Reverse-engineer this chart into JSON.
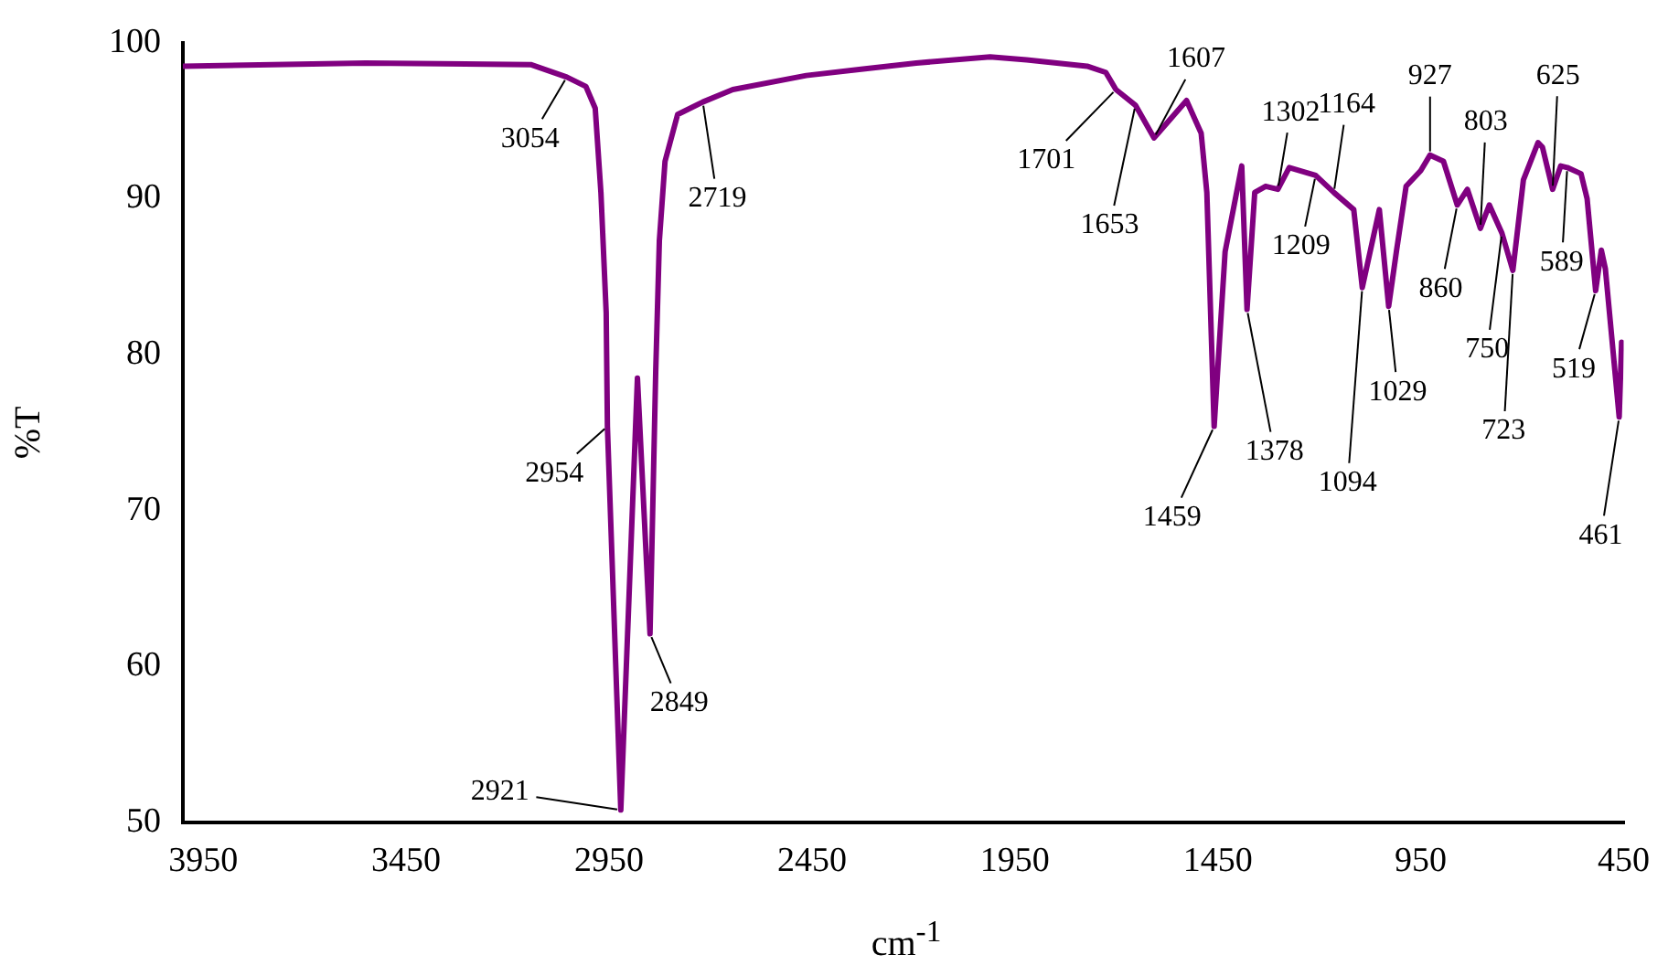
{
  "chart_data": {
    "type": "line",
    "xlabel": "cm$^{-1}$",
    "ylabel": "%T",
    "xlim": [
      4000,
      450
    ],
    "ylim": [
      50,
      100
    ],
    "xticks": [
      3950,
      3450,
      2950,
      2450,
      1950,
      1450,
      950,
      450
    ],
    "yticks": [
      50,
      60,
      70,
      80,
      90,
      100
    ],
    "grid": false,
    "series": [
      {
        "color": "#800080",
        "x": [
          4000,
          3550,
          3143,
          3054,
          3007,
          2984,
          2970,
          2957,
          2954,
          2921,
          2880,
          2849,
          2835,
          2826,
          2812,
          2781,
          2719,
          2645,
          2464,
          2329,
          2193,
          2011,
          1921,
          1772,
          1726,
          1701,
          1653,
          1607,
          1527,
          1491,
          1477,
          1459,
          1432,
          1391,
          1378,
          1359,
          1332,
          1302,
          1274,
          1209,
          1164,
          1115,
          1094,
          1052,
          1029,
          1010,
          986,
          950,
          927,
          894,
          860,
          835,
          803,
          781,
          750,
          723,
          697,
          661,
          650,
          625,
          605,
          589,
          555,
          540,
          519,
          505,
          495,
          461,
          455
        ],
        "values": [
          98.5,
          98.7,
          98.6,
          97.8,
          97.2,
          95.8,
          90.4,
          82.7,
          75.4,
          50.8,
          78.5,
          62.1,
          78.9,
          87.3,
          92.4,
          95.4,
          96.2,
          97.0,
          97.9,
          98.3,
          98.7,
          99.1,
          98.9,
          98.5,
          98.1,
          97.0,
          96.0,
          93.9,
          96.3,
          94.2,
          90.4,
          75.4,
          86.6,
          92.1,
          82.9,
          90.4,
          90.8,
          90.6,
          92.0,
          91.5,
          90.4,
          89.3,
          84.3,
          89.3,
          83.1,
          86.6,
          90.8,
          91.8,
          92.8,
          92.4,
          89.6,
          90.6,
          88.1,
          89.6,
          87.8,
          85.4,
          91.2,
          93.6,
          93.3,
          90.6,
          92.1,
          92.0,
          91.6,
          90.0,
          84.1,
          86.7,
          85.5,
          76.0,
          80.8
        ]
      }
    ],
    "annotations": [
      {
        "text": "3054",
        "x": 3054,
        "y": 97.8
      },
      {
        "text": "2954",
        "x": 2954,
        "y": 75.4
      },
      {
        "text": "2921",
        "x": 2921,
        "y": 50.8
      },
      {
        "text": "2849",
        "x": 2849,
        "y": 62.1
      },
      {
        "text": "2719",
        "x": 2719,
        "y": 96.2
      },
      {
        "text": "1701",
        "x": 1701,
        "y": 97.0
      },
      {
        "text": "1653",
        "x": 1653,
        "y": 96.0
      },
      {
        "text": "1607",
        "x": 1607,
        "y": 93.9
      },
      {
        "text": "1459",
        "x": 1459,
        "y": 75.4
      },
      {
        "text": "1378",
        "x": 1378,
        "y": 82.9
      },
      {
        "text": "1302",
        "x": 1302,
        "y": 90.6
      },
      {
        "text": "1209",
        "x": 1209,
        "y": 91.5
      },
      {
        "text": "1164",
        "x": 1164,
        "y": 90.4
      },
      {
        "text": "1094",
        "x": 1094,
        "y": 84.3
      },
      {
        "text": "1029",
        "x": 1029,
        "y": 83.1
      },
      {
        "text": "927",
        "x": 927,
        "y": 92.8
      },
      {
        "text": "860",
        "x": 860,
        "y": 89.6
      },
      {
        "text": "803",
        "x": 803,
        "y": 88.1
      },
      {
        "text": "750",
        "x": 750,
        "y": 87.8
      },
      {
        "text": "723",
        "x": 723,
        "y": 85.4
      },
      {
        "text": "625",
        "x": 625,
        "y": 90.6
      },
      {
        "text": "589",
        "x": 589,
        "y": 92.0
      },
      {
        "text": "519",
        "x": 519,
        "y": 84.1
      },
      {
        "text": "461",
        "x": 461,
        "y": 76.0
      }
    ]
  }
}
